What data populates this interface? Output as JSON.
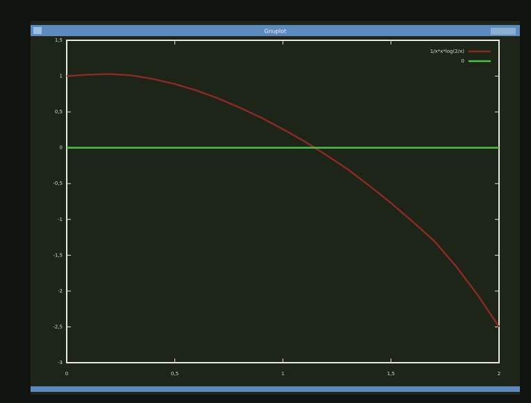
{
  "window": {
    "title": "Gnuplot"
  },
  "chart_data": {
    "type": "line",
    "x": [
      0,
      0.1,
      0.2,
      0.3,
      0.4,
      0.5,
      0.6,
      0.7,
      0.8,
      0.9,
      1.0,
      1.1,
      1.2,
      1.3,
      1.4,
      1.5,
      1.6,
      1.7,
      1.8,
      1.9,
      2.0
    ],
    "series": [
      {
        "name": "1/x*x*log(2/x)",
        "color": "#8a2a22",
        "values": [
          1.0,
          1.02,
          1.03,
          1.01,
          0.96,
          0.89,
          0.8,
          0.69,
          0.56,
          0.42,
          0.26,
          0.09,
          -0.1,
          -0.3,
          -0.53,
          -0.77,
          -1.03,
          -1.3,
          -1.65,
          -2.05,
          -2.5
        ]
      },
      {
        "name": "0",
        "color": "#4fc24a",
        "values": [
          0,
          0,
          0,
          0,
          0,
          0,
          0,
          0,
          0,
          0,
          0,
          0,
          0,
          0,
          0,
          0,
          0,
          0,
          0,
          0,
          0
        ]
      }
    ],
    "xlim": [
      0,
      2
    ],
    "xticks": [
      0,
      {
        "value": 0.5,
        "label": "0,5"
      },
      1,
      {
        "value": 1.5,
        "label": "1,5"
      },
      2
    ],
    "ylim": [
      -3,
      1.5
    ],
    "yticks": [
      {
        "value": 1.5,
        "label": "1,5"
      },
      1,
      {
        "value": 0.5,
        "label": "0,5"
      },
      0,
      {
        "value": -0.5,
        "label": "-0,5"
      },
      -1,
      {
        "value": -1.5,
        "label": "-1,5"
      },
      -2,
      {
        "value": -2.5,
        "label": "-2,5"
      },
      -3
    ],
    "legend": "top-right"
  }
}
